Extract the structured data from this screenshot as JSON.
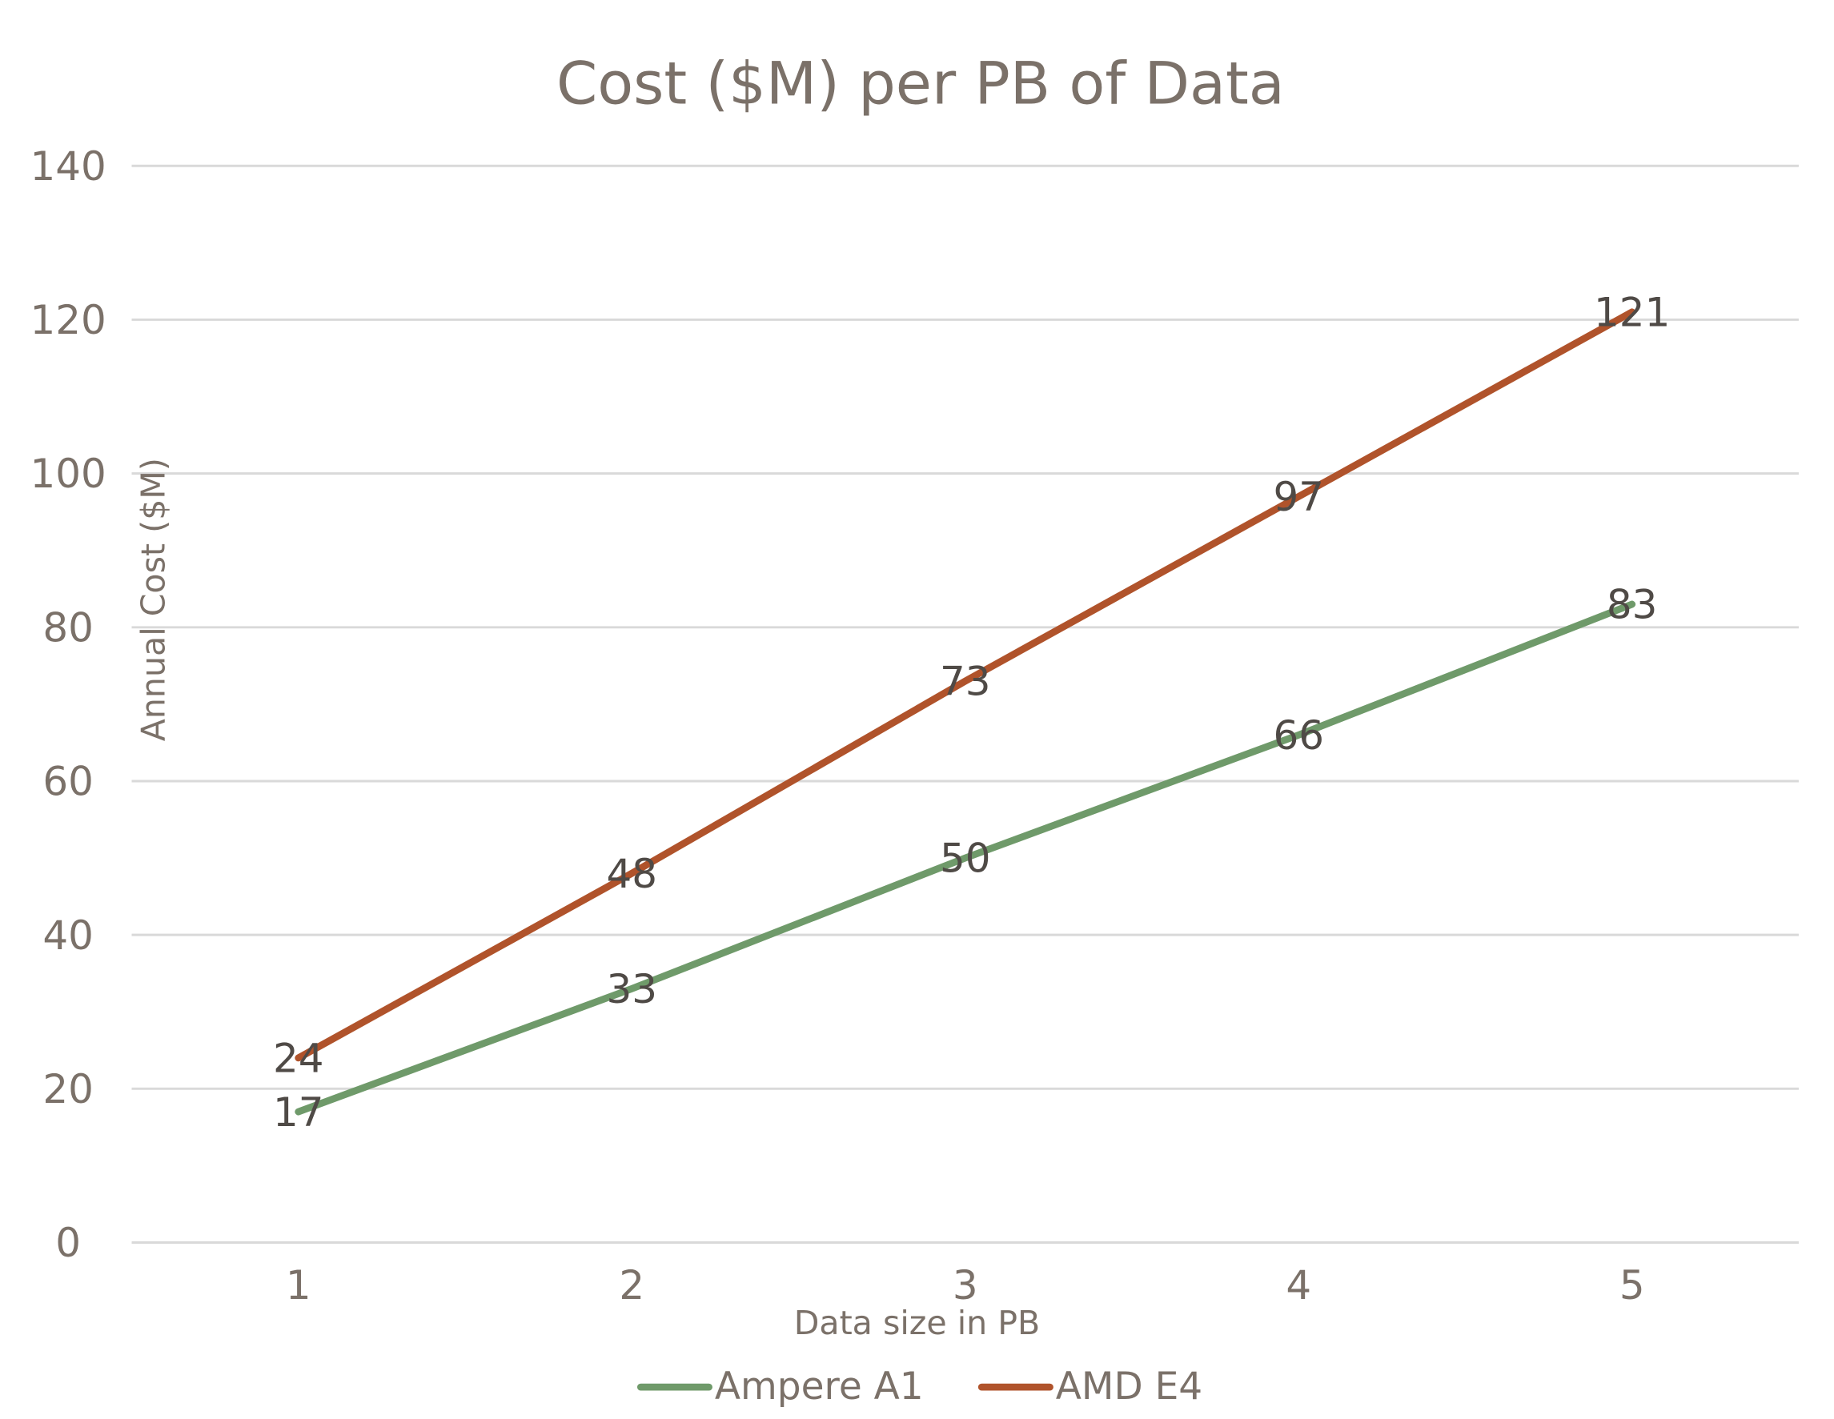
{
  "chart_data": {
    "type": "line",
    "title": "Cost ($M) per PB of Data",
    "xlabel": "Data size in PB",
    "ylabel": "Annual Cost ($M)",
    "categories": [
      "1",
      "2",
      "3",
      "4",
      "5"
    ],
    "ylim": [
      0,
      140
    ],
    "yticks": [
      "0",
      "20",
      "40",
      "60",
      "80",
      "100",
      "120",
      "140"
    ],
    "grid": true,
    "legend_position": "bottom",
    "series": [
      {
        "name": "Ampere A1",
        "color": "#6f9a6a",
        "values": [
          17,
          33,
          50,
          66,
          83
        ]
      },
      {
        "name": "AMD E4",
        "color": "#b0532b",
        "values": [
          24,
          48,
          73,
          97,
          121
        ]
      }
    ]
  }
}
